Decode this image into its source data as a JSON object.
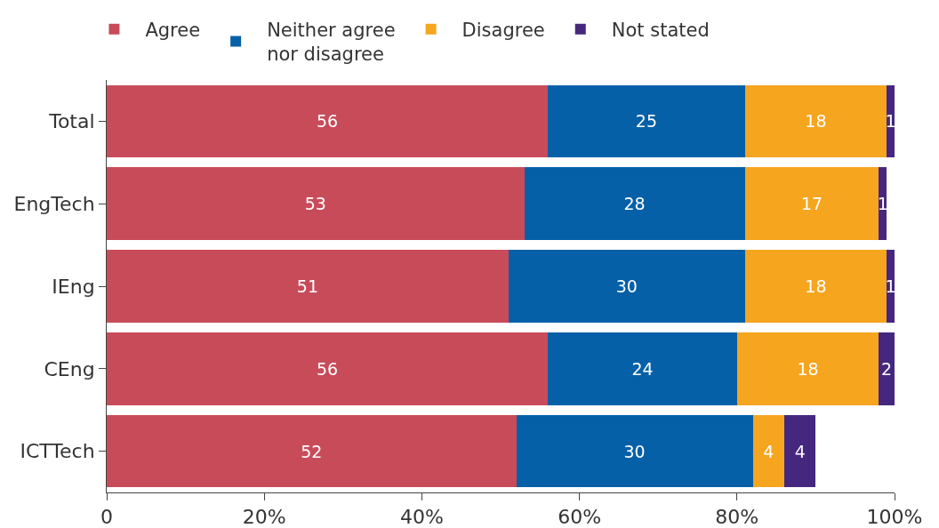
{
  "chart_data": {
    "type": "bar",
    "orientation": "horizontal",
    "stacked": true,
    "categories": [
      "Total",
      "EngTech",
      "IEng",
      "CEng",
      "ICTTech"
    ],
    "series": [
      {
        "name": "Agree",
        "color": "#c84b5a",
        "values": [
          56,
          53,
          51,
          56,
          52
        ],
        "value_labels": [
          "56",
          "53",
          "51",
          "56",
          "52"
        ]
      },
      {
        "name": "Neither agree nor disagree",
        "color": "#0560a8",
        "values": [
          25,
          28,
          30,
          24,
          30
        ],
        "value_labels": [
          "25",
          "28",
          "30",
          "24",
          "30"
        ]
      },
      {
        "name": "Disagree",
        "color": "#f6a51e",
        "values": [
          18,
          17,
          18,
          18,
          4
        ],
        "value_labels": [
          "18",
          "17",
          "18",
          "18",
          "4"
        ]
      },
      {
        "name": "Not stated",
        "color": "#45277f",
        "values": [
          1,
          1,
          1,
          2,
          4
        ],
        "value_labels": [
          "1",
          "1",
          "1",
          "2",
          "4"
        ]
      }
    ],
    "xlim": [
      0,
      100
    ],
    "xticks": [
      0,
      {
        "value": 20,
        "label": "20%"
      },
      {
        "value": 40,
        "label": "40%"
      },
      {
        "value": 60,
        "label": "60%"
      },
      {
        "value": 80,
        "label": "80%"
      },
      {
        "value": 100,
        "label": "100%"
      }
    ],
    "grid": false,
    "legend": "top left"
  }
}
